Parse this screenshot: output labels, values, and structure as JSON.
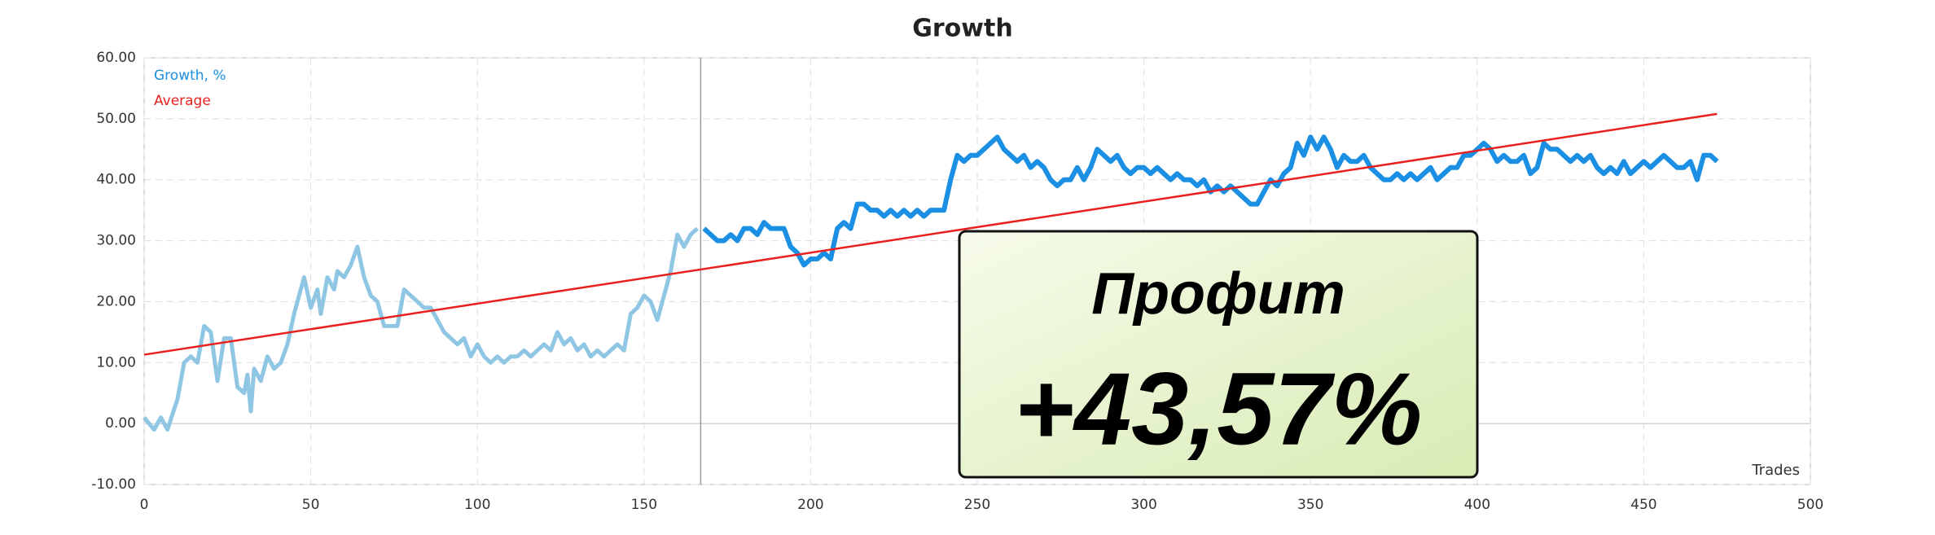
{
  "chart_data": {
    "type": "line",
    "title": "Growth",
    "x_label": "Trades",
    "xlim": [
      0,
      500
    ],
    "xticks": [
      0,
      50,
      100,
      150,
      200,
      250,
      300,
      350,
      400,
      450,
      500
    ],
    "ylim": [
      -10,
      60
    ],
    "yticks": [
      {
        "value": -10,
        "label": "-10.00"
      },
      {
        "value": 0,
        "label": "0.00"
      },
      {
        "value": 10,
        "label": "10.00"
      },
      {
        "value": 20,
        "label": "20.00"
      },
      {
        "value": 30,
        "label": "30.00"
      },
      {
        "value": 40,
        "label": "40.00"
      },
      {
        "value": 50,
        "label": "50.00"
      },
      {
        "value": 60,
        "label": "60.00"
      }
    ],
    "grid": true,
    "legend": "top-left",
    "marker_x": 167,
    "history_color": "#8fc6e4",
    "series": [
      {
        "name": "Growth, %",
        "color": "#1a8fe3",
        "x": [
          0,
          3,
          5,
          7,
          10,
          12,
          14,
          16,
          18,
          20,
          22,
          24,
          26,
          28,
          30,
          31,
          32,
          33,
          35,
          37,
          39,
          41,
          43,
          45,
          47,
          48,
          50,
          52,
          53,
          55,
          57,
          58,
          60,
          62,
          64,
          66,
          68,
          70,
          72,
          74,
          76,
          78,
          80,
          82,
          84,
          86,
          88,
          90,
          92,
          94,
          96,
          98,
          100,
          102,
          104,
          106,
          108,
          110,
          112,
          114,
          116,
          118,
          120,
          122,
          124,
          126,
          128,
          130,
          132,
          134,
          136,
          138,
          140,
          142,
          144,
          146,
          148,
          150,
          152,
          154,
          156,
          158,
          160,
          162,
          164,
          166,
          168,
          170,
          172,
          174,
          176,
          178,
          180,
          182,
          184,
          186,
          188,
          190,
          192,
          194,
          196,
          198,
          200,
          202,
          204,
          206,
          208,
          210,
          212,
          214,
          216,
          218,
          220,
          222,
          224,
          226,
          228,
          230,
          232,
          234,
          236,
          238,
          240,
          242,
          244,
          246,
          248,
          250,
          252,
          254,
          256,
          258,
          260,
          262,
          264,
          266,
          268,
          270,
          272,
          274,
          276,
          278,
          280,
          282,
          284,
          286,
          288,
          290,
          292,
          294,
          296,
          298,
          300,
          302,
          304,
          306,
          308,
          310,
          312,
          314,
          316,
          318,
          320,
          322,
          324,
          326,
          328,
          330,
          332,
          334,
          336,
          338,
          340,
          342,
          344,
          346,
          348,
          350,
          352,
          354,
          356,
          358,
          360,
          362,
          364,
          366,
          368,
          370,
          372,
          374,
          376,
          378,
          380,
          382,
          384,
          386,
          388,
          390,
          392,
          394,
          396,
          398,
          400,
          402,
          404,
          406,
          408,
          410,
          412,
          414,
          416,
          418,
          420,
          422,
          424,
          426,
          428,
          430,
          432,
          434,
          436,
          438,
          440,
          442,
          444,
          446,
          448,
          450,
          452,
          454,
          456,
          458,
          460,
          462,
          464,
          466,
          468,
          470,
          472
        ],
        "values": [
          1,
          -1,
          1,
          -1,
          4,
          10,
          11,
          10,
          16,
          15,
          7,
          14,
          14,
          6,
          5,
          8,
          2,
          9,
          7,
          11,
          9,
          10,
          13,
          18,
          22,
          24,
          19,
          22,
          18,
          24,
          22,
          25,
          24,
          26,
          29,
          24,
          21,
          20,
          16,
          16,
          16,
          22,
          21,
          20,
          19,
          19,
          17,
          15,
          14,
          13,
          14,
          11,
          13,
          11,
          10,
          11,
          10,
          11,
          11,
          12,
          11,
          12,
          13,
          12,
          15,
          13,
          14,
          12,
          13,
          11,
          12,
          11,
          12,
          13,
          12,
          18,
          19,
          21,
          20,
          17,
          21,
          25,
          31,
          29,
          31,
          32,
          32,
          31,
          30,
          30,
          31,
          30,
          32,
          32,
          31,
          33,
          32,
          32,
          32,
          29,
          28,
          26,
          27,
          27,
          28,
          27,
          32,
          33,
          32,
          36,
          36,
          35,
          35,
          34,
          35,
          34,
          35,
          34,
          35,
          34,
          35,
          35,
          35,
          40,
          44,
          43,
          44,
          44,
          45,
          46,
          47,
          45,
          44,
          43,
          44,
          42,
          43,
          42,
          40,
          39,
          40,
          40,
          42,
          40,
          42,
          45,
          44,
          43,
          44,
          42,
          41,
          42,
          42,
          41,
          42,
          41,
          40,
          41,
          40,
          40,
          39,
          40,
          38,
          39,
          38,
          39,
          38,
          37,
          36,
          36,
          38,
          40,
          39,
          41,
          42,
          46,
          44,
          47,
          45,
          47,
          45,
          42,
          44,
          43,
          43,
          44,
          42,
          41,
          40,
          40,
          41,
          40,
          41,
          40,
          41,
          42,
          40,
          41,
          42,
          42,
          44,
          44,
          45,
          46,
          45,
          43,
          44,
          43,
          43,
          44,
          41,
          42,
          46,
          45,
          45,
          44,
          43,
          44,
          43,
          44,
          42,
          41,
          42,
          41,
          43,
          41,
          42,
          43,
          42,
          43,
          44,
          43,
          42,
          42,
          43,
          40,
          44,
          44,
          43
        ]
      },
      {
        "name": "Average",
        "color": "#e8211f",
        "x": [
          0,
          472
        ],
        "values": [
          11.3,
          50.8
        ]
      }
    ],
    "annotation": {
      "title": "Профит",
      "value": "+43,57%"
    }
  }
}
